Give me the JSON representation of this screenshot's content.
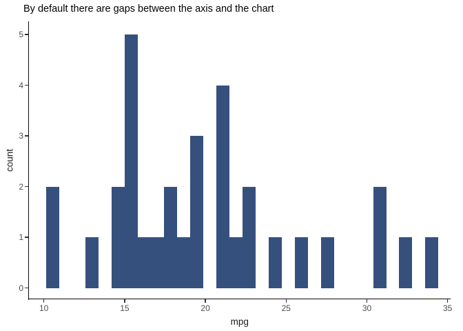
{
  "title": "By default there are gaps between the axis and the chart",
  "colors": {
    "background": "#FFFFFF",
    "bar": "#36507E",
    "axis-line": "#0A0A0A",
    "tick-mark": "#333333",
    "tick-label": "#4D4D4D",
    "title": "#000000",
    "axis-title": "#1A1A1A"
  },
  "chart_data": {
    "type": "bar",
    "subtype": "histogram",
    "title": "By default there are gaps between the axis and the chart",
    "xlabel": "mpg",
    "ylabel": "count",
    "binwidth": 0.8103,
    "bin_centers": [
      10.53,
      11.35,
      12.16,
      12.97,
      13.78,
      14.59,
      15.4,
      16.21,
      17.02,
      17.83,
      18.64,
      19.45,
      20.26,
      21.07,
      21.88,
      22.69,
      23.5,
      24.31,
      25.12,
      25.93,
      26.74,
      27.55,
      28.36,
      29.17,
      29.98,
      30.79,
      31.6,
      32.41,
      33.22,
      34.03
    ],
    "counts": [
      2,
      0,
      0,
      1,
      0,
      2,
      5,
      1,
      1,
      2,
      1,
      3,
      0,
      4,
      1,
      2,
      0,
      1,
      0,
      1,
      0,
      1,
      0,
      0,
      0,
      2,
      0,
      1,
      0,
      1
    ],
    "x_ticks": [
      10,
      15,
      20,
      25,
      30,
      35
    ],
    "y_ticks": [
      0,
      1,
      2,
      3,
      4,
      5
    ],
    "xlim": [
      9.07,
      35.16
    ],
    "ylim": [
      -0.22,
      5.27
    ],
    "grid": false,
    "legend_position": "none"
  }
}
